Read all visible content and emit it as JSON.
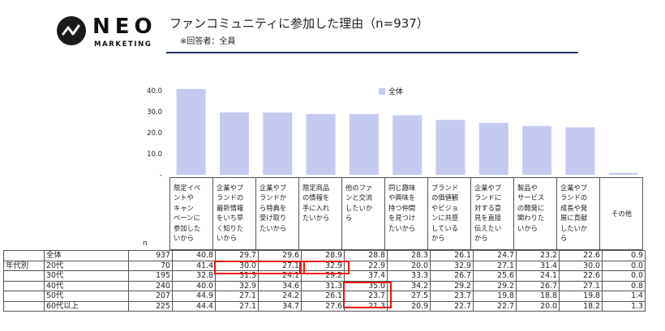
{
  "header": {
    "logo_text": "NEO",
    "logo_sub": "MARKETING",
    "title": "ファンコミュニティに参加した理由（n=937）",
    "note": "※回答者：全員",
    "rule_color": "#24355f"
  },
  "chart_data": {
    "type": "bar",
    "title": "ファンコミュニティに参加した理由（n=937）",
    "legend": "全体",
    "legend_position": "top",
    "bar_color": "#c5cbf0",
    "y_ticks": [
      "40.0",
      "30.0",
      "20.0",
      "10.0",
      "-"
    ],
    "ylim": [
      0,
      45
    ],
    "categories": [
      "限定イベントやキャンペーンに参加したいから",
      "企業やブランドの最新情報をいち早く知りたいから",
      "企業やブランドから特典を受け取りたいから",
      "限定商品の情報を手に入れたいから",
      "他のファンと交流したいから",
      "同じ趣味や興味を持つ仲間を見つけたいから",
      "ブランドの価値観やビジョンに共感しているから",
      "企業やブランドに対する意見を直接伝えたいから",
      "製品やサービスの開発に関わりたいから",
      "企業やブランドの成長や発展に貢献したいから",
      "その他"
    ],
    "category_lines": [
      "限定イベ\nントや\nキャン\nペーンに\n参加した\nいから",
      "企業やブ\nランドの\n最新情報\nをいち早\nく知りた\nいから",
      "企業やブ\nランドか\nら特典を\n受け取り\nたいから",
      "限定商品\nの情報を\n手に入れ\nたいから",
      "他のファ\nンと交流\nしたいか\nら",
      "同じ趣味\nや興味を\n持つ仲間\nを見つけ\nたいから",
      "ブランド\nの価値観\nやビジョ\nンに共感\nしている\nから",
      "企業やブ\nランドに\n対する意\n見を直接\n伝えたい\nから",
      "製品や\nサービス\nの開発に\n関わりた\nいから",
      "企業やブ\nランドの\n成長や発\n展に貢献\nしたいか\nら",
      "その他"
    ],
    "values": [
      40.8,
      29.7,
      29.6,
      28.9,
      28.8,
      28.3,
      26.1,
      24.7,
      23.2,
      22.6,
      0.9
    ],
    "n_label": "n",
    "rows": [
      {
        "group": "",
        "segment": "全体",
        "n": "937",
        "values": [
          "40.8",
          "29.7",
          "29.6",
          "28.9",
          "28.8",
          "28.3",
          "26.1",
          "24.7",
          "23.2",
          "22.6",
          "0.9"
        ]
      },
      {
        "group": "年代別",
        "segment": "20代",
        "n": "70",
        "values": [
          "41.4",
          "30.0",
          "27.1",
          "32.9",
          "22.9",
          "20.0",
          "32.9",
          "27.1",
          "31.4",
          "30.0",
          "0.0"
        ]
      },
      {
        "group": "",
        "segment": "30代",
        "n": "195",
        "values": [
          "32.8",
          "31.3",
          "24.1",
          "29.2",
          "37.4",
          "33.3",
          "26.7",
          "25.6",
          "24.1",
          "22.6",
          "0.0"
        ]
      },
      {
        "group": "",
        "segment": "40代",
        "n": "240",
        "values": [
          "40.0",
          "32.9",
          "34.6",
          "31.3",
          "35.0",
          "34.2",
          "29.2",
          "29.2",
          "26.7",
          "27.1",
          "0.8"
        ]
      },
      {
        "group": "",
        "segment": "50代",
        "n": "207",
        "values": [
          "44.9",
          "27.1",
          "24.2",
          "26.1",
          "23.7",
          "27.5",
          "23.7",
          "19.8",
          "18.8",
          "19.8",
          "1.4"
        ]
      },
      {
        "group": "",
        "segment": "60代以上",
        "n": "225",
        "values": [
          "44.4",
          "27.1",
          "34.7",
          "27.6",
          "21.3",
          "20.9",
          "22.7",
          "22.7",
          "20.0",
          "18.2",
          "1.3"
        ]
      }
    ],
    "highlight_color": "#e11111"
  }
}
